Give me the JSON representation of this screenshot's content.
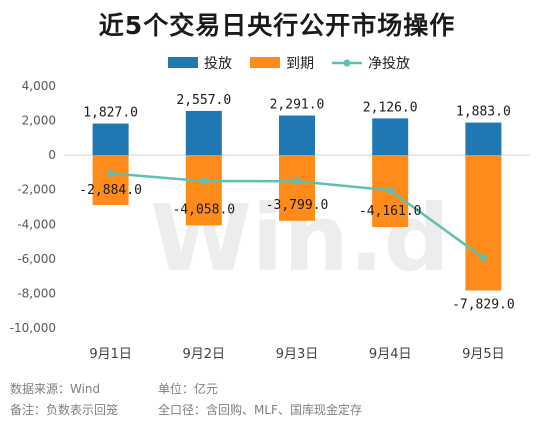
{
  "chart_data": {
    "type": "bar",
    "title": "近5个交易日央行公开市场操作",
    "categories": [
      "9月1日",
      "9月2日",
      "9月3日",
      "9月4日",
      "9月5日"
    ],
    "series": [
      {
        "name": "投放",
        "type": "bar",
        "color": "#1f77b4",
        "values": [
          1827.0,
          2557.0,
          2291.0,
          2126.0,
          1883.0
        ],
        "labels": [
          "1,827.0",
          "2,557.0",
          "2,291.0",
          "2,126.0",
          "1,883.0"
        ]
      },
      {
        "name": "到期",
        "type": "bar",
        "color": "#ff8c1a",
        "values": [
          -2884.0,
          -4058.0,
          -3799.0,
          -4161.0,
          -7829.0
        ],
        "labels": [
          "-2,884.0",
          "-4,058.0",
          "-3,799.0",
          "-4,161.0",
          "-7,829.0"
        ]
      },
      {
        "name": "净投放",
        "type": "line",
        "color": "#5fbfb0",
        "values": [
          -1057.0,
          -1501.0,
          -1508.0,
          -2035.0,
          -5946.0
        ]
      }
    ],
    "ylim": [
      -10000,
      4000
    ],
    "yticks": [
      4000,
      2000,
      0,
      -2000,
      -4000,
      -6000,
      -8000,
      -10000
    ],
    "ytick_labels": [
      "4,000",
      "2,000",
      "0",
      "-2,000",
      "-4,000",
      "-6,000",
      "-8,000",
      "-10,000"
    ],
    "legend_position": "top"
  },
  "watermark": "Win.d",
  "footnotes": {
    "source": "数据来源：Wind",
    "unit": "单位：亿元",
    "note": "备注：负数表示回笼",
    "scope": "全口径：含回购、MLF、国库现金定存"
  }
}
